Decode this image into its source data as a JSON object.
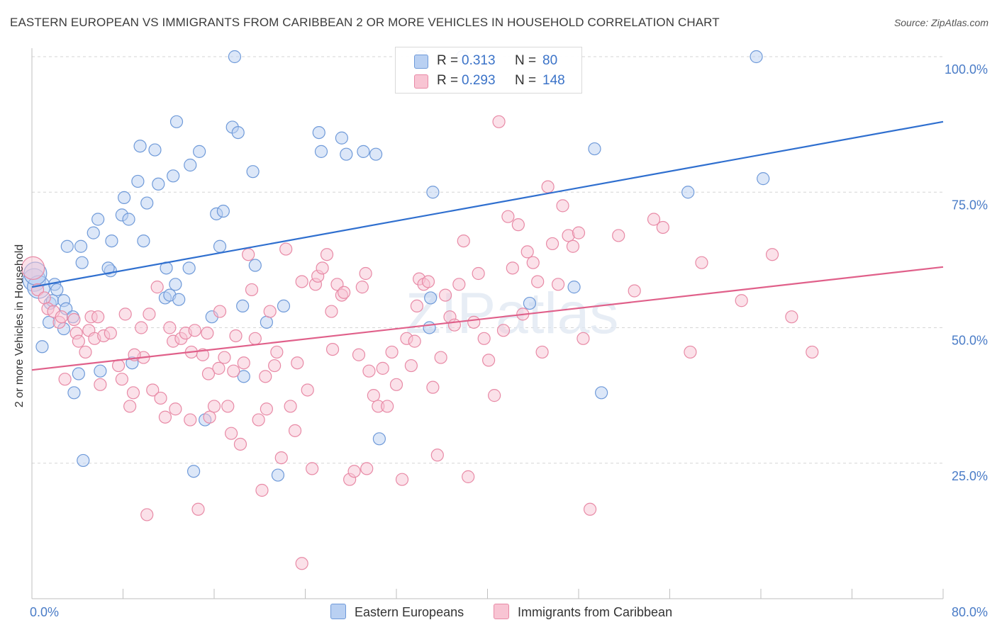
{
  "title": "EASTERN EUROPEAN VS IMMIGRANTS FROM CARIBBEAN 2 OR MORE VEHICLES IN HOUSEHOLD CORRELATION CHART",
  "source": "Source: ZipAtlas.com",
  "watermark": "ZIPatlas",
  "colors": {
    "blue_fill": "#b9d0f2",
    "blue_stroke": "#6f9ad9",
    "blue_line": "#2f6fcf",
    "pink_fill": "#f8c4d3",
    "pink_stroke": "#e88aa6",
    "pink_line": "#e0608a",
    "axis_text": "#4a7cc7",
    "grid": "#d6d6d6"
  },
  "stats": {
    "rows": [
      {
        "r_label": "R =",
        "r_value": "0.313",
        "n_label": "N =",
        "n_value": "80"
      },
      {
        "r_label": "R =",
        "r_value": "0.293",
        "n_label": "N =",
        "n_value": "148"
      }
    ]
  },
  "legend": {
    "items": [
      {
        "label": "Eastern Europeans"
      },
      {
        "label": "Immigrants from Caribbean"
      }
    ]
  },
  "chart_data": {
    "type": "scatter",
    "title": "EASTERN EUROPEAN VS IMMIGRANTS FROM CARIBBEAN 2 OR MORE VEHICLES IN HOUSEHOLD CORRELATION CHART",
    "xlabel": "",
    "ylabel": "2 or more Vehicles in Household",
    "xlim": [
      0,
      80
    ],
    "ylim": [
      0,
      100
    ],
    "x_tick_labels": [
      {
        "value": 0,
        "label": "0.0%"
      },
      {
        "value": 80,
        "label": "80.0%"
      }
    ],
    "y_tick_labels": [
      {
        "value": 25,
        "label": "25.0%"
      },
      {
        "value": 50,
        "label": "50.0%"
      },
      {
        "value": 75,
        "label": "75.0%"
      },
      {
        "value": 100,
        "label": "100.0%"
      }
    ],
    "grid": true,
    "legend_position": "bottom",
    "series": [
      {
        "name": "Eastern Europeans",
        "color": "#6f9ad9",
        "trend": {
          "x": [
            0,
            80
          ],
          "y": [
            57.5,
            88.0
          ]
        },
        "points": [
          [
            0.2,
            58.8
          ],
          [
            0.6,
            57.5
          ],
          [
            0.9,
            46.5
          ],
          [
            1.5,
            51.0
          ],
          [
            1.6,
            54.5
          ],
          [
            1.8,
            55.0
          ],
          [
            2.0,
            58.0
          ],
          [
            2.8,
            55.0
          ],
          [
            3.1,
            65.0
          ],
          [
            2.8,
            49.8
          ],
          [
            3.0,
            53.5
          ],
          [
            3.6,
            52.0
          ],
          [
            4.3,
            65.0
          ],
          [
            4.4,
            62.0
          ],
          [
            4.1,
            41.5
          ],
          [
            4.5,
            25.5
          ],
          [
            3.7,
            38.0
          ],
          [
            5.4,
            67.5
          ],
          [
            6.0,
            42.0
          ],
          [
            5.8,
            70.0
          ],
          [
            6.9,
            60.5
          ],
          [
            6.7,
            61.0
          ],
          [
            7.0,
            66.0
          ],
          [
            7.9,
            70.8
          ],
          [
            8.1,
            74.0
          ],
          [
            8.5,
            70.0
          ],
          [
            8.8,
            43.5
          ],
          [
            9.3,
            77.0
          ],
          [
            9.5,
            83.5
          ],
          [
            9.8,
            66.0
          ],
          [
            10.1,
            73.0
          ],
          [
            10.8,
            82.8
          ],
          [
            11.1,
            76.5
          ],
          [
            11.7,
            55.5
          ],
          [
            11.8,
            61.0
          ],
          [
            12.1,
            56.0
          ],
          [
            12.4,
            78.0
          ],
          [
            12.6,
            58.0
          ],
          [
            12.7,
            88.0
          ],
          [
            13.8,
            61.0
          ],
          [
            13.9,
            80.0
          ],
          [
            14.2,
            23.5
          ],
          [
            14.7,
            82.5
          ],
          [
            15.2,
            33.0
          ],
          [
            15.8,
            52.0
          ],
          [
            16.2,
            71.0
          ],
          [
            16.5,
            65.0
          ],
          [
            16.8,
            71.5
          ],
          [
            17.6,
            87.0
          ],
          [
            17.8,
            100.0
          ],
          [
            18.1,
            86.0
          ],
          [
            18.5,
            54.0
          ],
          [
            18.6,
            41.0
          ],
          [
            19.4,
            78.8
          ],
          [
            19.6,
            61.5
          ],
          [
            20.6,
            51.0
          ],
          [
            21.6,
            22.8
          ],
          [
            22.1,
            54.0
          ],
          [
            25.2,
            86.0
          ],
          [
            25.4,
            82.5
          ],
          [
            27.2,
            85.0
          ],
          [
            27.6,
            82.0
          ],
          [
            29.1,
            82.5
          ],
          [
            30.2,
            82.0
          ],
          [
            30.5,
            29.5
          ],
          [
            34.2,
            100.0
          ],
          [
            34.9,
            50.0
          ],
          [
            35.0,
            55.5
          ],
          [
            35.2,
            75.0
          ],
          [
            37.8,
            100.0
          ],
          [
            43.7,
            54.5
          ],
          [
            47.6,
            57.5
          ],
          [
            49.4,
            83.0
          ],
          [
            50.0,
            38.0
          ],
          [
            57.6,
            75.0
          ],
          [
            63.6,
            100.0
          ],
          [
            64.2,
            77.5
          ],
          [
            0.3,
            60.0
          ],
          [
            2.2,
            57.0
          ],
          [
            12.9,
            55.2
          ]
        ]
      },
      {
        "name": "Immigrants from Caribbean",
        "color": "#e88aa6",
        "trend": {
          "x": [
            0,
            80
          ],
          "y": [
            42.2,
            61.2
          ]
        },
        "points": [
          [
            0.1,
            61.0
          ],
          [
            0.5,
            57.0
          ],
          [
            1.1,
            55.5
          ],
          [
            1.4,
            53.5
          ],
          [
            1.9,
            53.0
          ],
          [
            2.4,
            51.0
          ],
          [
            2.6,
            52.0
          ],
          [
            2.9,
            40.5
          ],
          [
            3.7,
            51.5
          ],
          [
            3.9,
            49.0
          ],
          [
            4.1,
            47.5
          ],
          [
            4.7,
            45.5
          ],
          [
            5.0,
            49.5
          ],
          [
            5.2,
            52.0
          ],
          [
            5.5,
            48.0
          ],
          [
            5.8,
            52.0
          ],
          [
            6.0,
            39.5
          ],
          [
            6.3,
            48.5
          ],
          [
            6.9,
            49.0
          ],
          [
            7.6,
            43.0
          ],
          [
            7.9,
            40.5
          ],
          [
            8.2,
            52.5
          ],
          [
            8.6,
            35.5
          ],
          [
            8.9,
            38.0
          ],
          [
            9.6,
            50.0
          ],
          [
            9.8,
            44.5
          ],
          [
            10.1,
            15.5
          ],
          [
            10.3,
            52.5
          ],
          [
            10.6,
            38.5
          ],
          [
            11.0,
            57.5
          ],
          [
            11.3,
            37.0
          ],
          [
            11.7,
            33.5
          ],
          [
            12.1,
            50.0
          ],
          [
            12.4,
            47.5
          ],
          [
            12.6,
            35.0
          ],
          [
            13.1,
            48.0
          ],
          [
            13.5,
            49.0
          ],
          [
            13.9,
            33.0
          ],
          [
            14.0,
            45.5
          ],
          [
            14.3,
            49.5
          ],
          [
            14.6,
            16.5
          ],
          [
            15.0,
            45.0
          ],
          [
            15.4,
            49.0
          ],
          [
            15.6,
            33.5
          ],
          [
            16.0,
            35.5
          ],
          [
            16.4,
            42.5
          ],
          [
            16.5,
            53.0
          ],
          [
            16.9,
            44.5
          ],
          [
            17.2,
            35.5
          ],
          [
            17.5,
            30.5
          ],
          [
            17.7,
            42.0
          ],
          [
            17.9,
            48.5
          ],
          [
            18.3,
            28.5
          ],
          [
            18.6,
            43.5
          ],
          [
            19.0,
            63.5
          ],
          [
            19.3,
            57.0
          ],
          [
            19.6,
            48.0
          ],
          [
            19.9,
            33.0
          ],
          [
            20.2,
            20.0
          ],
          [
            20.6,
            35.0
          ],
          [
            20.9,
            53.0
          ],
          [
            21.3,
            43.0
          ],
          [
            21.5,
            45.5
          ],
          [
            21.9,
            26.0
          ],
          [
            22.3,
            64.5
          ],
          [
            22.7,
            35.5
          ],
          [
            23.1,
            31.0
          ],
          [
            23.3,
            43.5
          ],
          [
            23.7,
            58.5
          ],
          [
            24.2,
            38.5
          ],
          [
            24.6,
            24.0
          ],
          [
            24.9,
            58.0
          ],
          [
            25.1,
            59.5
          ],
          [
            25.5,
            61.0
          ],
          [
            25.9,
            63.5
          ],
          [
            26.3,
            53.0
          ],
          [
            26.4,
            46.0
          ],
          [
            26.8,
            58.0
          ],
          [
            27.2,
            56.0
          ],
          [
            27.4,
            56.5
          ],
          [
            27.9,
            22.0
          ],
          [
            28.3,
            23.5
          ],
          [
            28.7,
            45.0
          ],
          [
            29.0,
            57.5
          ],
          [
            29.3,
            60.0
          ],
          [
            29.6,
            42.0
          ],
          [
            30.0,
            37.5
          ],
          [
            30.4,
            35.5
          ],
          [
            30.8,
            42.5
          ],
          [
            31.2,
            35.5
          ],
          [
            31.6,
            45.5
          ],
          [
            32.0,
            39.5
          ],
          [
            32.5,
            22.0
          ],
          [
            32.9,
            48.0
          ],
          [
            33.3,
            43.0
          ],
          [
            33.6,
            47.5
          ],
          [
            34.0,
            59.0
          ],
          [
            34.4,
            58.0
          ],
          [
            34.8,
            58.5
          ],
          [
            35.2,
            39.0
          ],
          [
            35.6,
            26.5
          ],
          [
            35.9,
            44.5
          ],
          [
            36.3,
            56.0
          ],
          [
            36.7,
            52.0
          ],
          [
            37.1,
            50.5
          ],
          [
            37.5,
            58.0
          ],
          [
            37.9,
            66.0
          ],
          [
            38.3,
            22.5
          ],
          [
            38.8,
            51.0
          ],
          [
            39.2,
            60.0
          ],
          [
            39.7,
            48.0
          ],
          [
            40.1,
            44.0
          ],
          [
            40.6,
            37.5
          ],
          [
            41.0,
            88.0
          ],
          [
            41.4,
            49.5
          ],
          [
            41.8,
            70.5
          ],
          [
            42.2,
            61.0
          ],
          [
            42.7,
            69.0
          ],
          [
            43.1,
            52.5
          ],
          [
            43.5,
            64.0
          ],
          [
            44.0,
            62.0
          ],
          [
            44.4,
            58.5
          ],
          [
            44.8,
            45.5
          ],
          [
            45.3,
            76.0
          ],
          [
            45.7,
            65.5
          ],
          [
            46.2,
            58.0
          ],
          [
            46.6,
            72.5
          ],
          [
            47.1,
            67.0
          ],
          [
            47.5,
            65.0
          ],
          [
            48.0,
            67.5
          ],
          [
            48.4,
            48.0
          ],
          [
            49.0,
            16.5
          ],
          [
            51.5,
            67.0
          ],
          [
            52.9,
            56.8
          ],
          [
            54.6,
            70.0
          ],
          [
            55.4,
            68.5
          ],
          [
            57.8,
            45.5
          ],
          [
            58.8,
            62.0
          ],
          [
            62.3,
            55.0
          ],
          [
            65.0,
            63.5
          ],
          [
            66.7,
            52.0
          ],
          [
            68.5,
            45.5
          ],
          [
            20.5,
            41.0
          ],
          [
            23.7,
            6.5
          ],
          [
            29.4,
            24.0
          ],
          [
            33.8,
            54.0
          ],
          [
            9.0,
            45.0
          ],
          [
            15.5,
            41.5
          ]
        ]
      }
    ]
  }
}
